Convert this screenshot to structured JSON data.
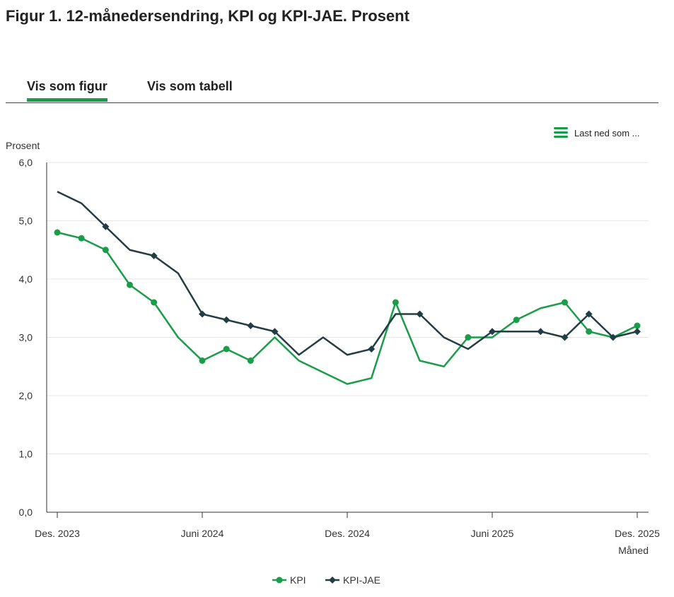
{
  "title": "Figur 1. 12-månedersendring, KPI og KPI-JAE. Prosent",
  "tabs": [
    {
      "label": "Vis som figur",
      "active": true
    },
    {
      "label": "Vis som tabell",
      "active": false
    }
  ],
  "download": {
    "label": "Last ned som ...",
    "icon": "menu-icon"
  },
  "colors": {
    "accent": "#1a9d49",
    "kpi": "#1a9d49",
    "kpijae": "#233d44"
  },
  "chart_data": {
    "type": "line",
    "ylabel": "Prosent",
    "xlabel": "Måned",
    "ylim": [
      0,
      6
    ],
    "yticks": [
      "0,0",
      "1,0",
      "2,0",
      "3,0",
      "4,0",
      "5,0",
      "6,0"
    ],
    "xticks": [
      {
        "label": "Des. 2023",
        "index": 0
      },
      {
        "label": "Juni 2024",
        "index": 6
      },
      {
        "label": "Des. 2024",
        "index": 12
      },
      {
        "label": "Juni 2025",
        "index": 18
      },
      {
        "label": "Des. 2025",
        "index": 24
      }
    ],
    "x": [
      "2023-12",
      "2024-01",
      "2024-02",
      "2024-03",
      "2024-04",
      "2024-05",
      "2024-06",
      "2024-07",
      "2024-08",
      "2024-09",
      "2024-10",
      "2024-11",
      "2024-12",
      "2025-01",
      "2025-02",
      "2025-03",
      "2025-04",
      "2025-05",
      "2025-06",
      "2025-07",
      "2025-08",
      "2025-09",
      "2025-10",
      "2025-11",
      "2025-12"
    ],
    "grid": true,
    "legend": "bottom",
    "series": [
      {
        "name": "KPI",
        "marker": "circle",
        "values": [
          4.8,
          4.7,
          4.5,
          3.9,
          3.6,
          3.0,
          2.6,
          2.8,
          2.6,
          3.0,
          2.6,
          2.4,
          2.2,
          2.3,
          3.6,
          2.6,
          2.5,
          3.0,
          3.0,
          3.3,
          3.5,
          3.6,
          3.1,
          3.0,
          3.2
        ]
      },
      {
        "name": "KPI-JAE",
        "marker": "diamond",
        "values": [
          5.5,
          5.3,
          4.9,
          4.5,
          4.4,
          4.1,
          3.4,
          3.3,
          3.2,
          3.1,
          2.7,
          3.0,
          2.7,
          2.8,
          3.4,
          3.4,
          3.0,
          2.8,
          3.1,
          3.1,
          3.1,
          3.0,
          3.4,
          3.0,
          3.1
        ]
      }
    ]
  }
}
